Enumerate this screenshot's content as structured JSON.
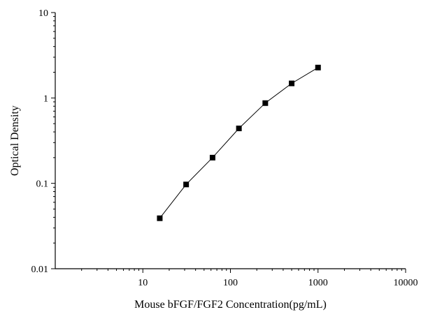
{
  "chart_data": {
    "type": "scatter",
    "title": "",
    "xlabel": "Mouse bFGF/FGF2 Concentration(pg/mL)",
    "ylabel": "Optical Density",
    "xscale": "log",
    "yscale": "log",
    "xlim": [
      1,
      10000
    ],
    "ylim": [
      0.01,
      10
    ],
    "xticks": [
      10,
      100,
      1000,
      10000
    ],
    "xtick_labels": [
      "10",
      "100",
      "1000",
      "10000"
    ],
    "yticks": [
      0.01,
      0.1,
      1,
      10
    ],
    "ytick_labels": [
      "0.01",
      "0.1",
      "1",
      "10"
    ],
    "grid": false,
    "legend": "none",
    "series": [
      {
        "x": [
          15.6,
          31.2,
          62.5,
          125,
          250,
          500,
          1000
        ],
        "y": [
          0.039,
          0.097,
          0.2,
          0.44,
          0.87,
          1.48,
          2.27
        ],
        "marker": "square",
        "line": true,
        "color": "#000000"
      }
    ]
  }
}
